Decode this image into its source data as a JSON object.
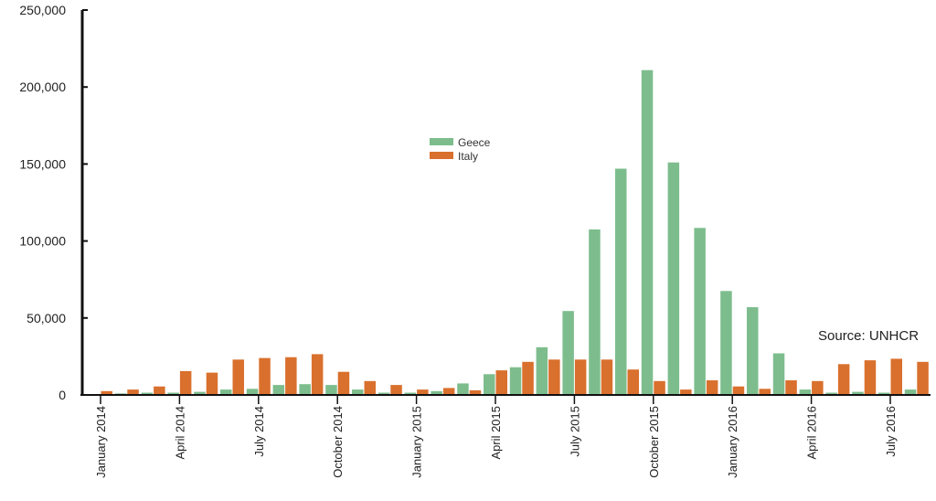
{
  "chart_data": {
    "type": "bar",
    "categories": [
      "Jan 2014",
      "Feb 2014",
      "Mar 2014",
      "Apr 2014",
      "May 2014",
      "Jun 2014",
      "Jul 2014",
      "Aug 2014",
      "Sep 2014",
      "Oct 2014",
      "Nov 2014",
      "Dec 2014",
      "Jan 2015",
      "Feb 2015",
      "Mar 2015",
      "Apr 2015",
      "May 2015",
      "Jun 2015",
      "Jul 2015",
      "Aug 2015",
      "Sep 2015",
      "Oct 2015",
      "Nov 2015",
      "Dec 2015",
      "Jan 2016",
      "Feb 2016",
      "Mar 2016",
      "Apr 2016",
      "May 2016",
      "Jun 2016",
      "Jul 2016",
      "Aug 2016"
    ],
    "x_tick_labels": [
      {
        "index": 0,
        "label": "January 2014"
      },
      {
        "index": 3,
        "label": "April 2014"
      },
      {
        "index": 6,
        "label": "July 2014"
      },
      {
        "index": 9,
        "label": "October 2014"
      },
      {
        "index": 12,
        "label": "January 2015"
      },
      {
        "index": 15,
        "label": "April 2015"
      },
      {
        "index": 18,
        "label": "July 2015"
      },
      {
        "index": 21,
        "label": "October 2015"
      },
      {
        "index": 24,
        "label": "January 2016"
      },
      {
        "index": 27,
        "label": "April 2016"
      },
      {
        "index": 30,
        "label": "July 2016"
      }
    ],
    "series": [
      {
        "name": "Geece",
        "color": "#7dbd8d",
        "values": [
          500,
          1000,
          1500,
          1500,
          2000,
          3500,
          4000,
          6500,
          7000,
          6500,
          3500,
          1500,
          1500,
          2500,
          7500,
          13500,
          18000,
          31000,
          54500,
          107500,
          147000,
          211000,
          151000,
          108500,
          67500,
          57000,
          27000,
          3500,
          1500,
          2000,
          1500,
          3500
        ]
      },
      {
        "name": "Italy",
        "color": "#d9702d",
        "values": [
          2500,
          3500,
          5500,
          15500,
          14500,
          23000,
          24000,
          24500,
          26500,
          15000,
          9000,
          6500,
          3500,
          4500,
          3000,
          16000,
          21500,
          23000,
          23000,
          23000,
          16500,
          9000,
          3500,
          9500,
          5500,
          4000,
          9500,
          9000,
          20000,
          22500,
          23500,
          21500
        ]
      }
    ],
    "ylim": [
      0,
      250000
    ],
    "yticks": [
      "0",
      "50,000",
      "100,000",
      "150,000",
      "200,000",
      "250,000"
    ],
    "ytick_values": [
      0,
      50000,
      100000,
      150000,
      200000,
      250000
    ],
    "legend_position": "center",
    "grid": false,
    "annotation": "Source: UNHCR"
  }
}
